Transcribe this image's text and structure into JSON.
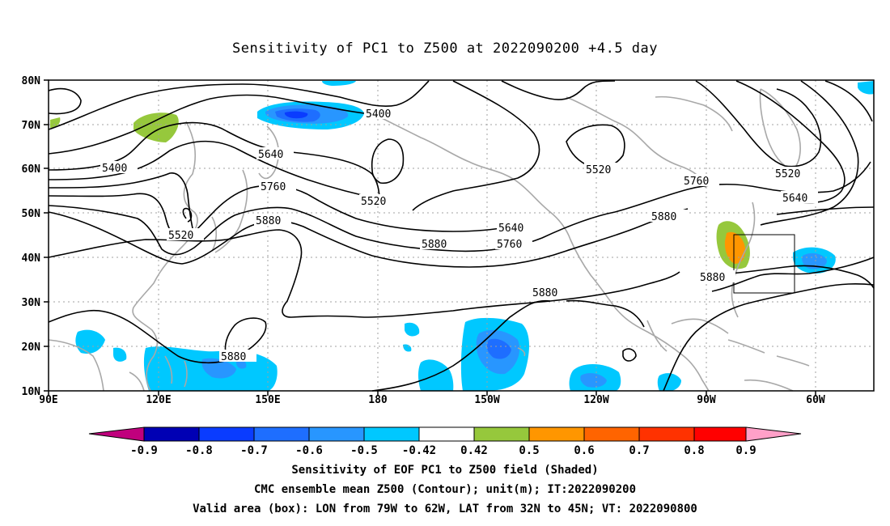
{
  "title": "Sensitivity of PC1 to Z500 at 2022090200 +4.5 day",
  "map": {
    "lat_labels": [
      "80N",
      "70N",
      "60N",
      "50N",
      "40N",
      "30N",
      "20N",
      "10N"
    ],
    "lon_labels": [
      "90E",
      "120E",
      "150E",
      "180",
      "150W",
      "120W",
      "90W",
      "60W"
    ],
    "contour_labels": [
      "5400",
      "5400",
      "5640",
      "5760",
      "5520",
      "5880",
      "5520",
      "5640",
      "5760",
      "5880",
      "5520",
      "5520",
      "5760",
      "5640",
      "5880",
      "5880",
      "5880",
      "5880"
    ]
  },
  "colorbar": {
    "labels": [
      "-0.9",
      "-0.8",
      "-0.7",
      "-0.6",
      "-0.5",
      "-0.42",
      "0.42",
      "0.5",
      "0.6",
      "0.7",
      "0.8",
      "0.9"
    ],
    "colors": [
      "#c0007d",
      "#0000b4",
      "#0a3cff",
      "#1e6eff",
      "#2896ff",
      "#00c8ff",
      "#ffffff",
      "#96c83c",
      "#ff9600",
      "#ff6400",
      "#ff3200",
      "#ff0000",
      "#ffa0c8"
    ]
  },
  "captions": [
    "Sensitivity of EOF PC1 to Z500 field (Shaded)",
    "CMC ensemble mean Z500 (Contour); unit(m); IT:2022090200",
    "Valid area (box): LON from 79W to 62W, LAT from 32N to 45N; VT: 2022090800"
  ]
}
